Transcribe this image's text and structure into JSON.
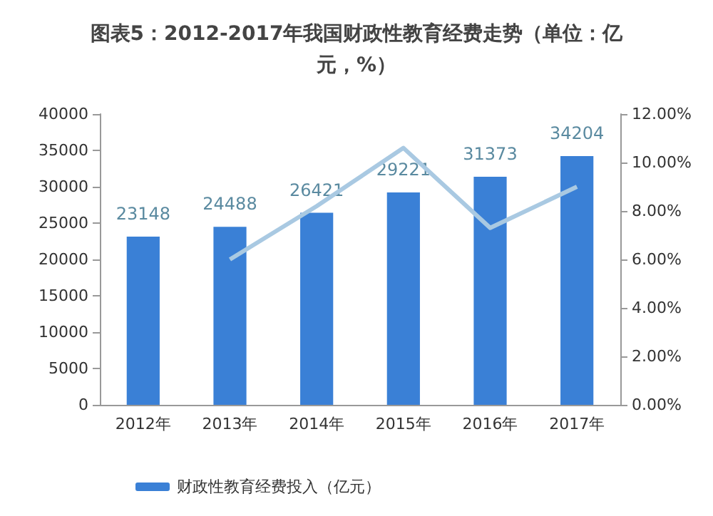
{
  "chart_data": {
    "type": "bar",
    "title": "图表5：2012-2017年我国财政性教育经费走势（单位：亿元，%）",
    "categories": [
      "2012年",
      "2013年",
      "2014年",
      "2015年",
      "2016年",
      "2017年"
    ],
    "series": [
      {
        "name": "财政性教育经费投入（亿元）",
        "color": "#3a80d6",
        "values": [
          23148,
          24488,
          26421,
          29221,
          31373,
          34204
        ],
        "value_labels": [
          "23148",
          "24488",
          "26421",
          "29221",
          "31373",
          "34204"
        ]
      },
      {
        "type": "line",
        "axis": "y2",
        "color": "#a9c9e2",
        "values": [
          null,
          6.0,
          8.2,
          10.6,
          7.3,
          9.0
        ]
      }
    ],
    "ylim": [
      0,
      40000
    ],
    "yticks": [
      0,
      5000,
      10000,
      15000,
      20000,
      25000,
      30000,
      35000,
      40000
    ],
    "y2lim": [
      0,
      12
    ],
    "y2ticks": [
      {
        "value": 0,
        "label": "0.00%"
      },
      {
        "value": 2,
        "label": "2.00%"
      },
      {
        "value": 4,
        "label": "4.00%"
      },
      {
        "value": 6,
        "label": "6.00%"
      },
      {
        "value": 8,
        "label": "8.00%"
      },
      {
        "value": 10,
        "label": "10.00%"
      },
      {
        "value": 12,
        "label": "12.00%"
      }
    ],
    "legend": "bottom",
    "marker": "none"
  }
}
